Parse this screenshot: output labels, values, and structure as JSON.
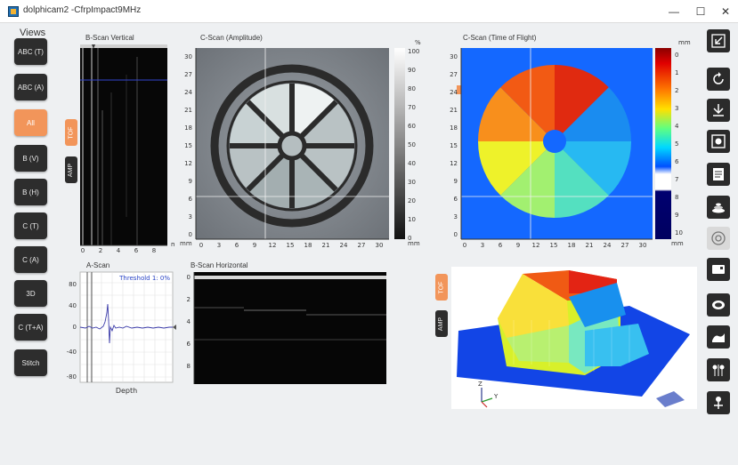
{
  "window": {
    "title": "dolphicam2 -CfrpImpact9MHz",
    "minimize_glyph": "—",
    "maximize_glyph": "☐",
    "close_glyph": "✕"
  },
  "views": {
    "heading": "Views",
    "buttons": [
      {
        "label": "ABC (T)",
        "active": false
      },
      {
        "label": "ABC (A)",
        "active": false
      },
      {
        "label": "All",
        "active": true
      },
      {
        "label": "B (V)",
        "active": false
      },
      {
        "label": "B (H)",
        "active": false
      },
      {
        "label": "C (T)",
        "active": false
      },
      {
        "label": "C (A)",
        "active": false
      },
      {
        "label": "3D",
        "active": false
      },
      {
        "label": "C (T+A)",
        "active": false
      },
      {
        "label": "Stitch",
        "active": false
      }
    ]
  },
  "tabs": {
    "tof": "TOF",
    "amp": "AMP"
  },
  "bscan_vertical": {
    "title": "B-Scan Vertical",
    "x_ticks": [
      "0",
      "2",
      "4",
      "6",
      "8"
    ],
    "unit": "mm"
  },
  "cscan_amplitude": {
    "title": "C-Scan (Amplitude)",
    "x_ticks": [
      "0",
      "3",
      "6",
      "9",
      "12",
      "15",
      "18",
      "21",
      "24",
      "27",
      "30"
    ],
    "y_ticks": [
      "30",
      "27",
      "24",
      "21",
      "18",
      "15",
      "12",
      "9",
      "6",
      "3",
      "0"
    ],
    "x_unit": "mm",
    "colorbar_unit_top": "%",
    "colorbar_unit_bottom": "mm",
    "colorbar_ticks": [
      "100",
      "90",
      "80",
      "70",
      "60",
      "50",
      "40",
      "30",
      "20",
      "10",
      "0"
    ]
  },
  "cscan_tof": {
    "title": "C-Scan (Time of Flight)",
    "x_ticks": [
      "0",
      "3",
      "6",
      "9",
      "12",
      "15",
      "18",
      "21",
      "24",
      "27",
      "30"
    ],
    "y_ticks": [
      "30",
      "27",
      "24",
      "21",
      "18",
      "15",
      "12",
      "9",
      "6",
      "3",
      "0"
    ],
    "x_unit": "mm",
    "colorbar_unit_top": "mm",
    "colorbar_unit_bottom": "mm",
    "colorbar_ticks": [
      "0",
      "1",
      "2",
      "3",
      "4",
      "5",
      "6",
      "7",
      "8",
      "9",
      "10"
    ]
  },
  "ascan": {
    "title": "A-Scan",
    "threshold_label": "Threshold 1: 0%",
    "y_ticks": [
      "80",
      "40",
      "0",
      "-40",
      "-80"
    ],
    "x_label": "Depth"
  },
  "bscan_horizontal": {
    "title": "B-Scan Horizontal",
    "y_ticks": [
      "0",
      "2",
      "4",
      "6",
      "8"
    ]
  },
  "view3d": {
    "axis_z": "Z",
    "axis_y": "Y"
  },
  "toolbar": {
    "icons": [
      "collapse-icon",
      "rotate-icon",
      "download-icon",
      "snapshot-icon",
      "report-icon",
      "stack-icon",
      "target-icon",
      "card-icon",
      "probe-icon",
      "surface-icon",
      "balloons-icon",
      "transducer-icon"
    ]
  },
  "colors": {
    "accent": "#f2955a",
    "button_dark": "#2d2d2d",
    "background": "#eef0f2"
  }
}
